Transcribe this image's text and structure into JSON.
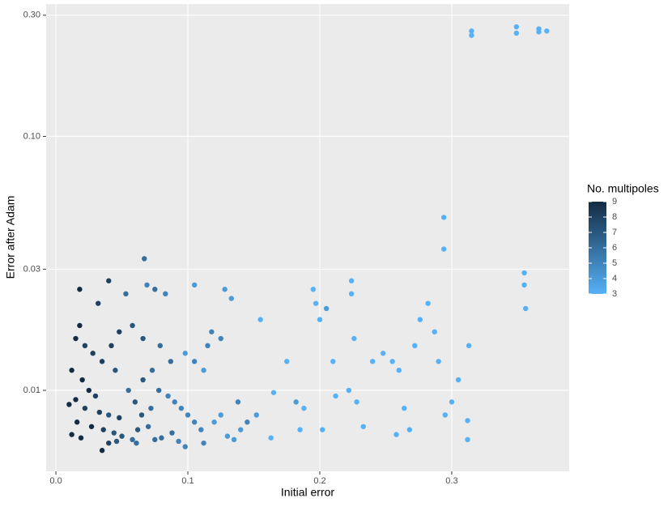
{
  "chart_data": {
    "type": "scatter",
    "x_label": "Initial error",
    "y_label": "Error after Adam",
    "y_log": true,
    "grid": true,
    "panel_color": "#ebebeb",
    "grid_color": "#ffffff",
    "xlim": [
      -0.0074,
      0.389
    ],
    "ylim": [
      0.0048,
      0.332
    ],
    "xticks": [
      {
        "value": 0,
        "label": "0.0"
      },
      {
        "value": 0.1,
        "label": "0.1"
      },
      {
        "value": 0.2,
        "label": "0.2"
      },
      {
        "value": 0.3,
        "label": "0.3"
      }
    ],
    "yticks": [
      {
        "value": 0.01,
        "label": "0.01"
      },
      {
        "value": 0.03,
        "label": "0.03"
      },
      {
        "value": 0.1,
        "label": "0.10"
      },
      {
        "value": 0.3,
        "label": "0.30"
      }
    ],
    "legend_title": "No. multipoles",
    "legend_position": "right",
    "color_low": "#56B1F7",
    "color_high": "#132B43",
    "color_limits": [
      3,
      9
    ],
    "color_ticks": [
      3,
      4,
      5,
      6,
      7,
      8,
      9
    ],
    "x": [
      0.315,
      0.315,
      0.349,
      0.349,
      0.366,
      0.366,
      0.372,
      0.294,
      0.294,
      0.355,
      0.355,
      0.356,
      0.018,
      0.032,
      0.04,
      0.067,
      0.069,
      0.053,
      0.075,
      0.083,
      0.105,
      0.128,
      0.133,
      0.018,
      0.015,
      0.022,
      0.028,
      0.035,
      0.045,
      0.012,
      0.02,
      0.025,
      0.03,
      0.015,
      0.01,
      0.022,
      0.033,
      0.04,
      0.048,
      0.016,
      0.027,
      0.036,
      0.044,
      0.012,
      0.019,
      0.05,
      0.058,
      0.062,
      0.07,
      0.065,
      0.072,
      0.06,
      0.055,
      0.066,
      0.073,
      0.078,
      0.085,
      0.09,
      0.095,
      0.1,
      0.105,
      0.11,
      0.088,
      0.08,
      0.093,
      0.035,
      0.04,
      0.046,
      0.061,
      0.075,
      0.098,
      0.112,
      0.12,
      0.125,
      0.13,
      0.135,
      0.14,
      0.145,
      0.138,
      0.115,
      0.118,
      0.125,
      0.098,
      0.105,
      0.112,
      0.087,
      0.079,
      0.066,
      0.058,
      0.048,
      0.042,
      0.155,
      0.152,
      0.163,
      0.165,
      0.175,
      0.182,
      0.188,
      0.195,
      0.197,
      0.2,
      0.205,
      0.21,
      0.212,
      0.224,
      0.224,
      0.226,
      0.222,
      0.228,
      0.24,
      0.248,
      0.255,
      0.26,
      0.264,
      0.268,
      0.272,
      0.276,
      0.282,
      0.287,
      0.29,
      0.295,
      0.3,
      0.305,
      0.312,
      0.313,
      0.312,
      0.258,
      0.233,
      0.202,
      0.185
    ],
    "values": [
      0.26,
      0.25,
      0.27,
      0.255,
      0.265,
      0.258,
      0.26,
      0.048,
      0.036,
      0.029,
      0.026,
      0.021,
      0.025,
      0.022,
      0.027,
      0.033,
      0.026,
      0.024,
      0.025,
      0.024,
      0.026,
      0.025,
      0.023,
      0.018,
      0.016,
      0.015,
      0.014,
      0.013,
      0.012,
      0.012,
      0.011,
      0.01,
      0.0095,
      0.0092,
      0.0088,
      0.0085,
      0.0082,
      0.008,
      0.0078,
      0.0075,
      0.0072,
      0.007,
      0.0068,
      0.0067,
      0.0065,
      0.0066,
      0.0064,
      0.007,
      0.0072,
      0.008,
      0.0085,
      0.009,
      0.01,
      0.011,
      0.012,
      0.01,
      0.0095,
      0.009,
      0.0085,
      0.008,
      0.0075,
      0.007,
      0.0068,
      0.0065,
      0.0063,
      0.0058,
      0.0062,
      0.0063,
      0.0062,
      0.0064,
      0.006,
      0.0062,
      0.0075,
      0.008,
      0.0066,
      0.0064,
      0.007,
      0.0075,
      0.009,
      0.015,
      0.017,
      0.016,
      0.014,
      0.013,
      0.012,
      0.013,
      0.015,
      0.016,
      0.018,
      0.017,
      0.015,
      0.019,
      0.008,
      0.0065,
      0.0098,
      0.013,
      0.009,
      0.0085,
      0.025,
      0.022,
      0.019,
      0.021,
      0.013,
      0.0095,
      0.027,
      0.024,
      0.016,
      0.01,
      0.009,
      0.013,
      0.014,
      0.013,
      0.012,
      0.0085,
      0.007,
      0.015,
      0.019,
      0.022,
      0.017,
      0.013,
      0.008,
      0.009,
      0.011,
      0.0076,
      0.015,
      0.0064,
      0.0067,
      0.0072,
      0.007,
      0.007
    ],
    "color_values": [
      3,
      3,
      3,
      3,
      3,
      3,
      3,
      3,
      3,
      3,
      3,
      3,
      9,
      8,
      8,
      6,
      5,
      6,
      6,
      5,
      4,
      4,
      4,
      9,
      9,
      8,
      8,
      8,
      7,
      9,
      9,
      9,
      8,
      9,
      9,
      8,
      8,
      7,
      8,
      9,
      9,
      8,
      7,
      9,
      9,
      7,
      6,
      7,
      6,
      7,
      6,
      7,
      6,
      7,
      6,
      6,
      5,
      5,
      5,
      5,
      5,
      5,
      6,
      6,
      5,
      9,
      8,
      7,
      6,
      6,
      5,
      5,
      4,
      4,
      4,
      4,
      4,
      5,
      5,
      5,
      5,
      5,
      4,
      5,
      4,
      6,
      6,
      7,
      7,
      8,
      8,
      3,
      4,
      3,
      3,
      3,
      4,
      3,
      3,
      3,
      3,
      4,
      3,
      3,
      3,
      3,
      3,
      3,
      3,
      3,
      3,
      3,
      3,
      3,
      3,
      3,
      3,
      3,
      3,
      3,
      3,
      3,
      3,
      3,
      3,
      3,
      3,
      3,
      3,
      3
    ]
  }
}
